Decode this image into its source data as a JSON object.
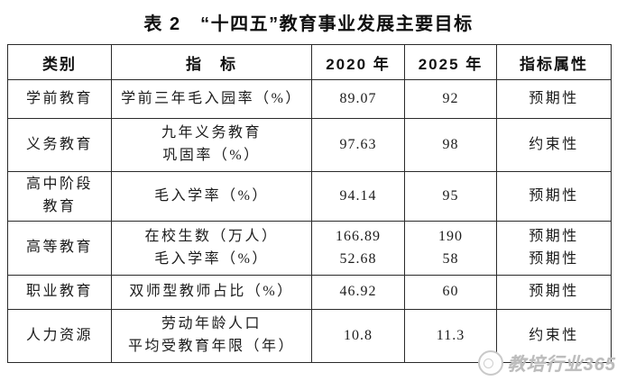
{
  "title": "表 2　“十四五”教育事业发展主要目标",
  "table": {
    "headers": [
      "类别",
      "指　标",
      "2020 年",
      "2025 年",
      "指标属性"
    ],
    "rows": [
      {
        "category": [
          "学前教育"
        ],
        "indicator": [
          "学前三年毛入园率（%）"
        ],
        "y2020": [
          "89.07"
        ],
        "y2025": [
          "92"
        ],
        "attribute": [
          "预期性"
        ]
      },
      {
        "category": [
          "义务教育"
        ],
        "indicator": [
          "九年义务教育",
          "巩固率（%）"
        ],
        "y2020": [
          "97.63"
        ],
        "y2025": [
          "98"
        ],
        "attribute": [
          "约束性"
        ]
      },
      {
        "category": [
          "高中阶段",
          "教育"
        ],
        "indicator": [
          "毛入学率（%）"
        ],
        "y2020": [
          "94.14"
        ],
        "y2025": [
          "95"
        ],
        "attribute": [
          "预期性"
        ]
      },
      {
        "category": [
          "高等教育"
        ],
        "indicator": [
          "在校生数（万人）",
          "毛入学率（%）"
        ],
        "y2020": [
          "166.89",
          "52.68"
        ],
        "y2025": [
          "190",
          "58"
        ],
        "attribute": [
          "预期性",
          "预期性"
        ]
      },
      {
        "category": [
          "职业教育"
        ],
        "indicator": [
          "双师型教师占比（%）"
        ],
        "y2020": [
          "46.92"
        ],
        "y2025": [
          "60"
        ],
        "attribute": [
          "预期性"
        ]
      },
      {
        "category": [
          "人力资源"
        ],
        "indicator": [
          "劳动年龄人口",
          "平均受教育年限（年）"
        ],
        "y2020": [
          "10.8"
        ],
        "y2025": [
          "11.3"
        ],
        "attribute": [
          "约束性"
        ]
      }
    ]
  },
  "watermark": {
    "label": "教培行业365",
    "icon": "circle-logo-icon",
    "color": "#bcbcbc"
  },
  "colors": {
    "border": "#2a2a2a",
    "text": "#1c1c1c",
    "background": "#ffffff"
  }
}
